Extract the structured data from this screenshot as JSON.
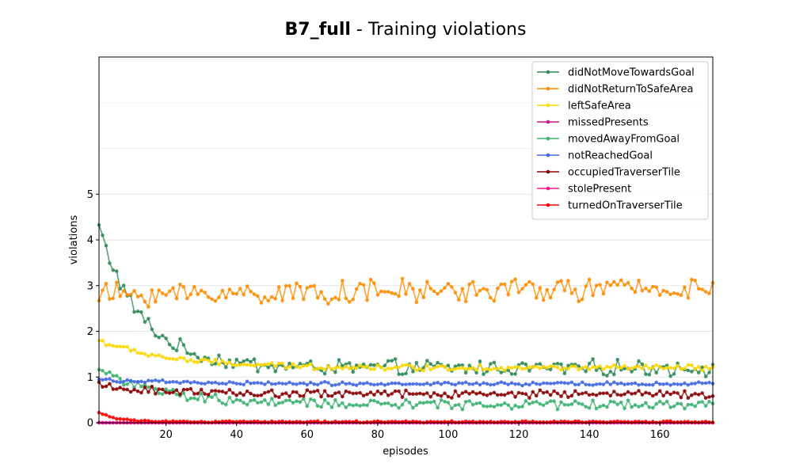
{
  "chart_data": {
    "type": "line",
    "title_bold": "B7_full",
    "title_rest": " - Training violations",
    "xlabel": "episodes",
    "ylabel": "violations",
    "xlim": [
      1,
      175
    ],
    "ylim": [
      0,
      8
    ],
    "xticks": [
      20,
      40,
      60,
      80,
      100,
      120,
      140,
      160
    ],
    "yticks": [
      0,
      1,
      2,
      3,
      4,
      5
    ],
    "grid_y": true,
    "legend_position": "top-right",
    "series": [
      {
        "name": "didNotMoveTowardsGoal",
        "color": "#2e8b57",
        "shape": "decay",
        "start": 4.3,
        "end": 1.2,
        "rate": 0.085,
        "noise": 0.14,
        "spread": 0.12
      },
      {
        "name": "didNotReturnToSafeArea",
        "color": "#ff8c00",
        "shape": "flat",
        "start": 2.8,
        "end": 2.95,
        "rate": 0.05,
        "noise": 0.22,
        "spread": 0.15
      },
      {
        "name": "leftSafeArea",
        "color": "#ffd700",
        "shape": "decay",
        "start": 1.8,
        "end": 1.2,
        "rate": 0.05,
        "noise": 0.05,
        "spread": 0.05
      },
      {
        "name": "missedPresents",
        "color": "#c71585",
        "shape": "flat",
        "start": 0.0,
        "end": 0.0,
        "rate": 0.1,
        "noise": 0.0,
        "spread": 0.0
      },
      {
        "name": "movedAwayFromGoal",
        "color": "#3cb371",
        "shape": "decay",
        "start": 1.2,
        "end": 0.4,
        "rate": 0.06,
        "noise": 0.09,
        "spread": 0.06
      },
      {
        "name": "notReachedGoal",
        "color": "#4169e1",
        "shape": "decay",
        "start": 0.95,
        "end": 0.85,
        "rate": 0.05,
        "noise": 0.03,
        "spread": 0.03
      },
      {
        "name": "occupiedTraverserTile",
        "color": "#8b0000",
        "shape": "decay",
        "start": 0.8,
        "end": 0.63,
        "rate": 0.05,
        "noise": 0.07,
        "spread": 0.05
      },
      {
        "name": "stolePresent",
        "color": "#ff1493",
        "shape": "flat",
        "start": 0.0,
        "end": 0.0,
        "rate": 0.1,
        "noise": 0.0,
        "spread": 0.0
      },
      {
        "name": "turnedOnTraverserTile",
        "color": "#ff0000",
        "shape": "decay",
        "start": 0.22,
        "end": 0.02,
        "rate": 0.18,
        "noise": 0.015,
        "spread": 0.01
      }
    ]
  }
}
